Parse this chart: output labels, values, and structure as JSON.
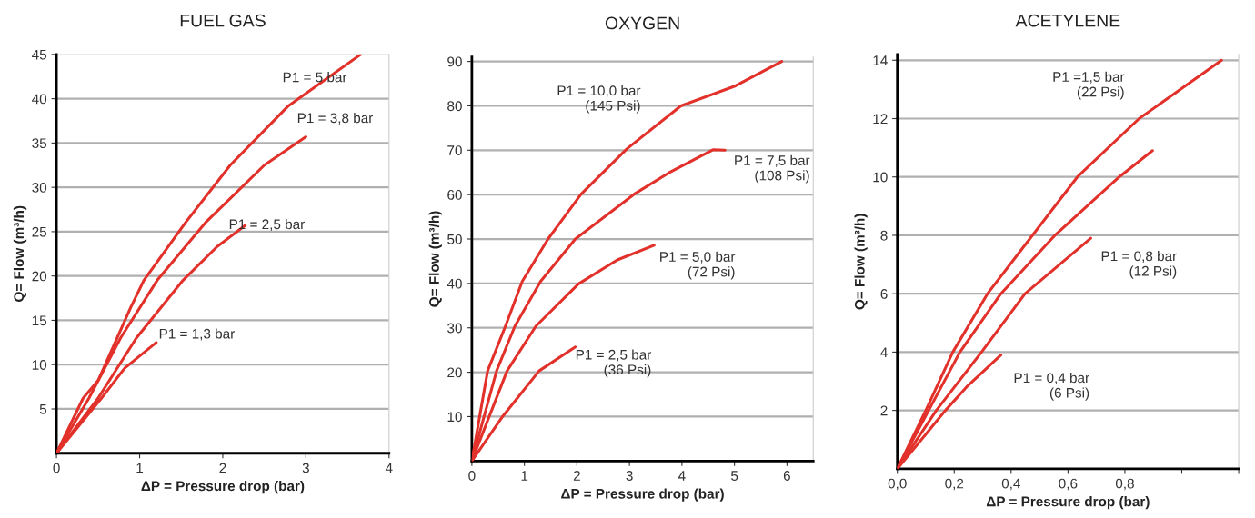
{
  "chart_data": [
    {
      "type": "line",
      "title": "FUEL GAS",
      "xlabel": "ΔP = Pressure drop (bar)",
      "ylabel": "Q= Flow (m³/h)",
      "xlim": [
        0,
        4
      ],
      "ylim": [
        0,
        45
      ],
      "xticks": [
        0,
        1,
        2,
        3,
        4
      ],
      "yticks": [
        5,
        10,
        15,
        20,
        25,
        30,
        35,
        40,
        45
      ],
      "grid": "y",
      "marker": "none",
      "line_style": "solid",
      "series": [
        {
          "name": "P1 = 5 bar",
          "color": "#e2312a",
          "x": [
            0,
            0.32,
            0.5,
            0.89,
            1.05,
            1.55,
            2.09,
            2.79,
            3.66
          ],
          "values": [
            0,
            6.2,
            8.2,
            16.4,
            19.5,
            26,
            32.5,
            39.2,
            45
          ]
        },
        {
          "name": "P1 = 3,8 bar",
          "color": "#e2312a",
          "x": [
            0,
            0.39,
            0.77,
            1.21,
            1.79,
            2.5,
            3.0
          ],
          "values": [
            0,
            6.2,
            13,
            19.5,
            26,
            32.5,
            35.7
          ]
        },
        {
          "name": "P1 = 2,5 bar",
          "color": "#e2312a",
          "x": [
            0,
            0.5,
            0.96,
            1.52,
            1.93,
            2.27
          ],
          "values": [
            0,
            6.2,
            13,
            19.5,
            23.3,
            25.7
          ]
        },
        {
          "name": "P1 = 1,3 bar",
          "color": "#e2312a",
          "x": [
            0,
            0.54,
            0.82,
            1.2
          ],
          "values": [
            0,
            6.2,
            9.6,
            12.5
          ]
        }
      ]
    },
    {
      "type": "line",
      "title": "OXYGEN",
      "xlabel": "ΔP = Pressure drop (bar)",
      "ylabel": "Q= Flow (m³/h)",
      "xlim": [
        0,
        6.5
      ],
      "ylim": [
        0,
        91
      ],
      "xticks": [
        0,
        1,
        2,
        3,
        4,
        5,
        6
      ],
      "yticks": [
        10,
        20,
        30,
        40,
        50,
        60,
        70,
        80,
        90
      ],
      "grid": "y",
      "marker": "none",
      "line_style": "solid",
      "series": [
        {
          "name": "P1 = 10,0 bar\n(145 Psi)",
          "color": "#e2312a",
          "x": [
            0,
            0.3,
            0.64,
            0.96,
            1.45,
            2.08,
            2.95,
            3.98,
            5.02,
            5.9
          ],
          "values": [
            0,
            20.3,
            30.4,
            40.5,
            50,
            60.1,
            70.3,
            80,
            84.5,
            90
          ]
        },
        {
          "name": "P1 = 7,5 bar\n(108 Psi)",
          "color": "#e2312a",
          "x": [
            0,
            0.47,
            0.82,
            1.31,
            1.97,
            3.09,
            3.75,
            4.59,
            4.82
          ],
          "values": [
            0,
            20.3,
            30.4,
            40.5,
            50,
            60.1,
            64.9,
            70.1,
            70
          ]
        },
        {
          "name": "P1 = 5,0 bar\n(72 Psi)",
          "color": "#e2312a",
          "x": [
            0,
            0.67,
            1.22,
            2.03,
            2.77,
            3.47
          ],
          "values": [
            0,
            20.3,
            30.4,
            39.9,
            45.3,
            48.6
          ]
        },
        {
          "name": "P1 = 2,5 bar\n(36 Psi)",
          "color": "#e2312a",
          "x": [
            0,
            0.59,
            1.28,
            1.97
          ],
          "values": [
            0,
            10.1,
            20.3,
            25.7
          ]
        }
      ]
    },
    {
      "type": "line",
      "title": "ACETYLENE",
      "xlabel": "ΔP = Pressure drop (bar)",
      "ylabel": "Q= Flow (m³/h)",
      "xlim": [
        0,
        1.2
      ],
      "ylim": [
        0,
        14.2
      ],
      "xticks": [
        {
          "value": 0,
          "label": "0,0"
        },
        {
          "value": 0.2,
          "label": "0,2"
        },
        {
          "value": 0.4,
          "label": "0,4"
        },
        {
          "value": 0.6,
          "label": "0,6"
        },
        {
          "value": 0.8,
          "label": "0,8"
        },
        {
          "value": 1.0,
          "label": null
        },
        {
          "value": 1.2,
          "label": null
        }
      ],
      "yticks": [
        2,
        4,
        6,
        8,
        10,
        12,
        14
      ],
      "grid": "y",
      "marker": "none",
      "line_style": "solid",
      "series": [
        {
          "name": "P1 =1,5 bar\n(22 Psi)",
          "color": "#e2312a",
          "x": [
            0,
            0.1,
            0.195,
            0.317,
            0.475,
            0.633,
            0.85,
            1.14
          ],
          "values": [
            0,
            2,
            4,
            6,
            8,
            10,
            12,
            14
          ]
        },
        {
          "color": "#e2312a",
          "x": [
            0,
            0.11,
            0.22,
            0.364,
            0.554,
            0.78,
            0.897
          ],
          "values": [
            0,
            2,
            4,
            6,
            8,
            10,
            10.9
          ]
        },
        {
          "name": "P1 = 0,8 bar\n(12 Psi)",
          "color": "#e2312a",
          "x": [
            0,
            0.137,
            0.296,
            0.449,
            0.68
          ],
          "values": [
            0,
            2,
            4,
            6,
            7.9
          ]
        },
        {
          "name": "P1 = 0,4 bar\n(6 Psi)",
          "color": "#e2312a",
          "x": [
            0,
            0.169,
            0.243,
            0.364
          ],
          "values": [
            0,
            2,
            2.8,
            3.9
          ]
        }
      ]
    }
  ]
}
